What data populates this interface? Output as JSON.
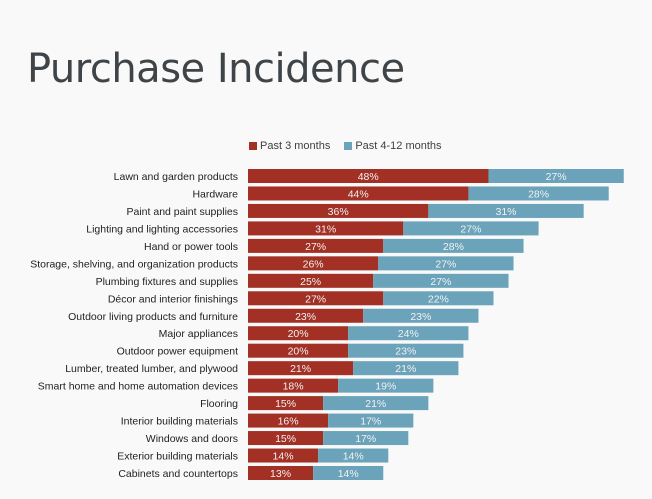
{
  "title": "Purchase Incidence",
  "chart_data": {
    "type": "bar",
    "orientation": "horizontal",
    "stacked": true,
    "legend_position": "top",
    "grid": false,
    "categories": [
      "Lawn and garden products",
      "Hardware",
      "Paint and paint supplies",
      "Lighting and lighting accessories",
      "Hand or power tools",
      "Storage, shelving, and organization products",
      "Plumbing fixtures and supplies",
      "Décor and interior finishings",
      "Outdoor living products and furniture",
      "Major appliances",
      "Outdoor power equipment",
      "Lumber, treated lumber, and plywood",
      "Smart home and home automation devices",
      "Flooring",
      "Interior building materials",
      "Windows and doors",
      "Exterior building materials",
      "Cabinets and countertops"
    ],
    "series": [
      {
        "name": "Past 3 months",
        "color": "#a23024",
        "values": [
          48,
          44,
          36,
          31,
          27,
          26,
          25,
          27,
          23,
          20,
          20,
          21,
          18,
          15,
          16,
          15,
          14,
          13
        ]
      },
      {
        "name": "Past 4-12 months",
        "color": "#6aa3ba",
        "values": [
          27,
          28,
          31,
          27,
          28,
          27,
          27,
          22,
          23,
          24,
          23,
          21,
          19,
          21,
          17,
          17,
          14,
          14
        ]
      }
    ],
    "value_format": "%"
  }
}
